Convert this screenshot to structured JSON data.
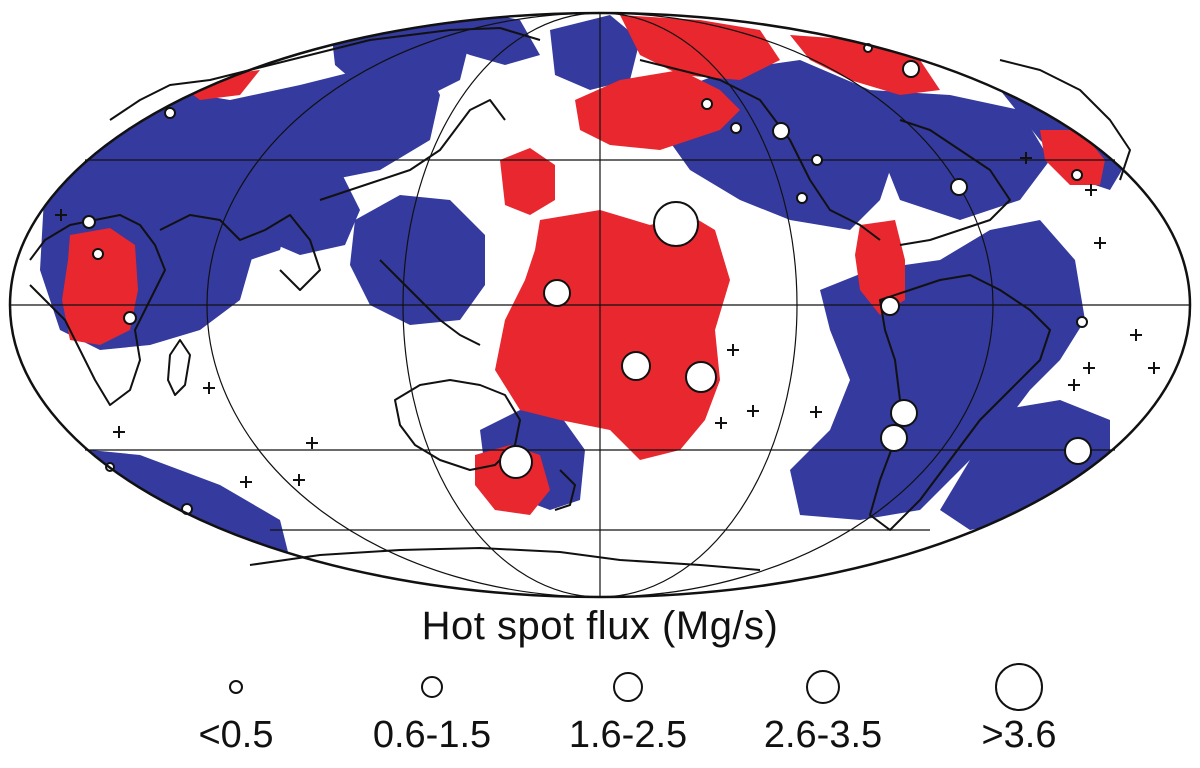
{
  "legend": {
    "title": "Hot spot flux (Mg/s)",
    "classes": [
      {
        "label": "<0.5",
        "size_rank": 1
      },
      {
        "label": "0.6-1.5",
        "size_rank": 2
      },
      {
        "label": "1.6-2.5",
        "size_rank": 3
      },
      {
        "label": "2.6-3.5",
        "size_rank": 4
      },
      {
        "label": ">3.6",
        "size_rank": 5
      }
    ]
  },
  "map": {
    "projection": "Mollweide (Pacific-centred)",
    "colors": {
      "blue_region": "#343a9e",
      "red_region": "#e8272e",
      "coastline": "#111111",
      "graticule": "#111111",
      "hotspot_fill": "#ffffff"
    },
    "hotspot_sizes_shown": [
      "<0.5",
      "0.6-1.5",
      "1.6-2.5",
      "2.6-3.5",
      ">3.6"
    ],
    "icons": [
      "hotspot-circle-icon",
      "plus-marker-icon"
    ]
  }
}
